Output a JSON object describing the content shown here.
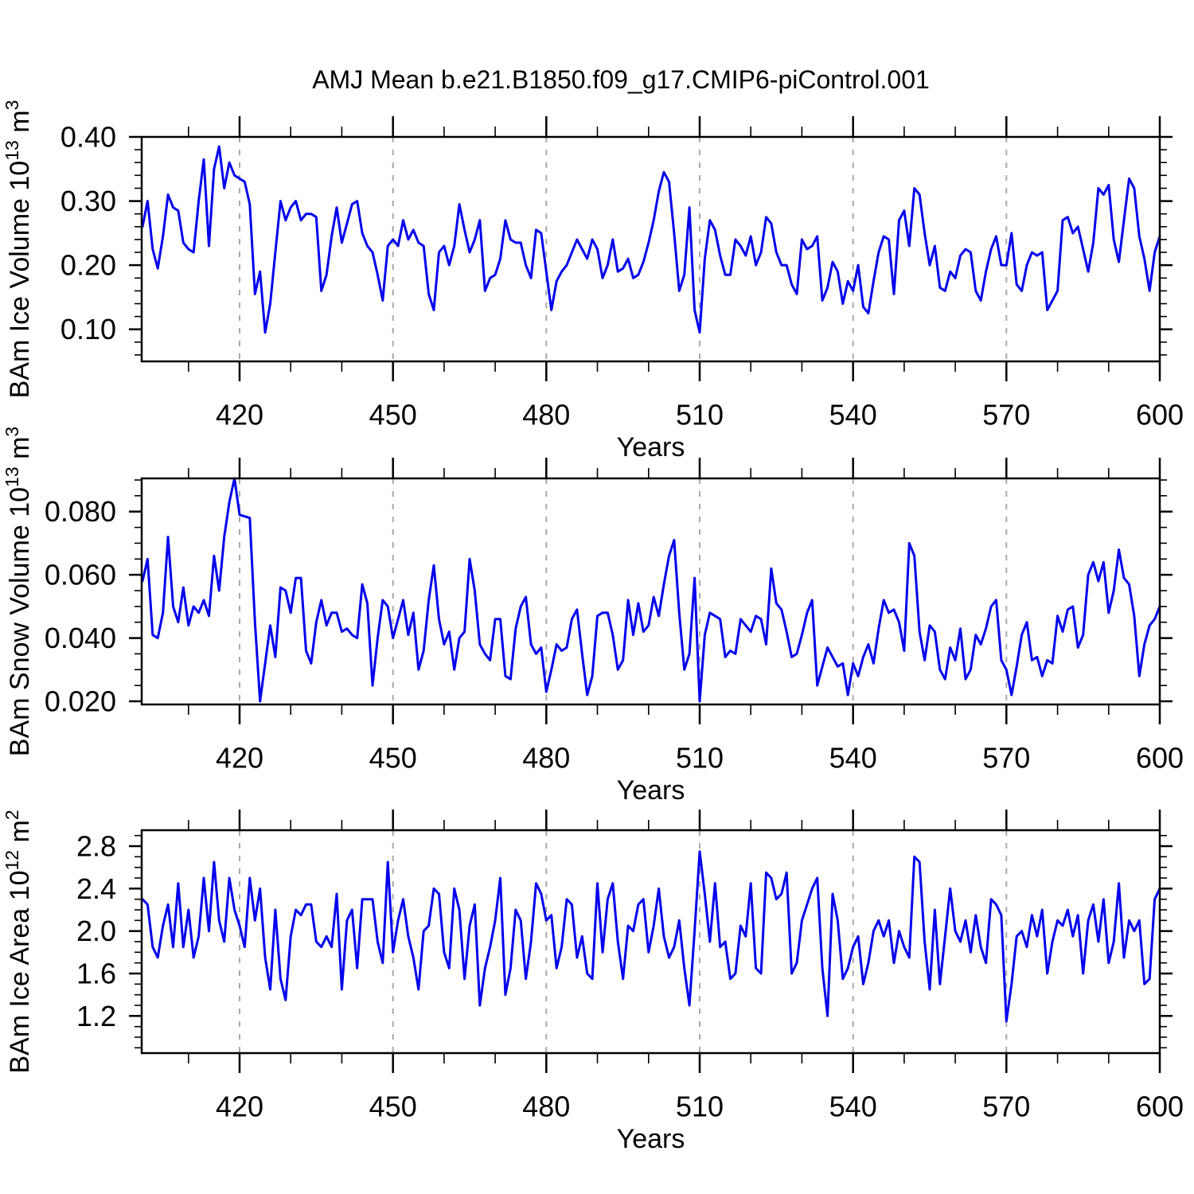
{
  "title": "AMJ Mean b.e21.B1850.f09_g17.CMIP6-piControl.001",
  "colors": {
    "line": "#0000EE",
    "grid": "#A9A9A9",
    "frame": "#000000",
    "text": "#000000",
    "background": "#FFFFFF"
  },
  "chart_data": [
    {
      "type": "line",
      "name": "bam-ice-volume",
      "ylabel_parts": [
        {
          "t": "BAm Ice Volume 10"
        },
        {
          "t": "13",
          "sup": true
        },
        {
          "t": " m"
        },
        {
          "t": "3",
          "sup": true
        }
      ],
      "xlabel": "Years",
      "x_start": 401,
      "x_step": 1,
      "xlim": [
        400.85,
        600
      ],
      "ylim": [
        0.05,
        0.4
      ],
      "xticks": [
        420,
        450,
        480,
        510,
        540,
        570,
        600
      ],
      "xtick_labels": [
        "420",
        "450",
        "480",
        "510",
        "540",
        "570",
        "600"
      ],
      "xminor_step": 10,
      "yticks": [
        0.1,
        0.2,
        0.3,
        0.4
      ],
      "ytick_labels": [
        "0.10",
        "0.20",
        "0.30",
        "0.40"
      ],
      "yminor_step": 0.02,
      "grid": "vertical-dashed",
      "legend": "none",
      "values": [
        0.26,
        0.3,
        0.225,
        0.195,
        0.245,
        0.31,
        0.29,
        0.285,
        0.235,
        0.225,
        0.22,
        0.3,
        0.365,
        0.23,
        0.35,
        0.385,
        0.32,
        0.36,
        0.34,
        0.335,
        0.33,
        0.295,
        0.155,
        0.19,
        0.095,
        0.14,
        0.22,
        0.3,
        0.27,
        0.29,
        0.3,
        0.27,
        0.28,
        0.28,
        0.275,
        0.16,
        0.185,
        0.245,
        0.29,
        0.235,
        0.265,
        0.295,
        0.3,
        0.25,
        0.23,
        0.22,
        0.185,
        0.145,
        0.23,
        0.24,
        0.23,
        0.27,
        0.24,
        0.255,
        0.235,
        0.23,
        0.155,
        0.13,
        0.22,
        0.23,
        0.2,
        0.23,
        0.295,
        0.255,
        0.22,
        0.24,
        0.27,
        0.16,
        0.18,
        0.185,
        0.21,
        0.27,
        0.24,
        0.235,
        0.235,
        0.2,
        0.18,
        0.255,
        0.25,
        0.19,
        0.13,
        0.175,
        0.19,
        0.2,
        0.22,
        0.24,
        0.225,
        0.21,
        0.24,
        0.225,
        0.18,
        0.2,
        0.24,
        0.19,
        0.195,
        0.21,
        0.18,
        0.185,
        0.205,
        0.235,
        0.27,
        0.315,
        0.345,
        0.33,
        0.25,
        0.16,
        0.185,
        0.29,
        0.13,
        0.095,
        0.21,
        0.27,
        0.255,
        0.215,
        0.185,
        0.185,
        0.24,
        0.23,
        0.215,
        0.245,
        0.2,
        0.22,
        0.275,
        0.265,
        0.22,
        0.2,
        0.2,
        0.17,
        0.155,
        0.24,
        0.225,
        0.23,
        0.245,
        0.145,
        0.165,
        0.205,
        0.19,
        0.14,
        0.175,
        0.16,
        0.2,
        0.135,
        0.125,
        0.175,
        0.22,
        0.245,
        0.24,
        0.155,
        0.27,
        0.285,
        0.23,
        0.32,
        0.31,
        0.25,
        0.2,
        0.23,
        0.165,
        0.16,
        0.19,
        0.18,
        0.215,
        0.225,
        0.22,
        0.16,
        0.145,
        0.19,
        0.225,
        0.245,
        0.2,
        0.2,
        0.25,
        0.17,
        0.16,
        0.2,
        0.22,
        0.215,
        0.22,
        0.13,
        0.145,
        0.16,
        0.27,
        0.275,
        0.25,
        0.26,
        0.225,
        0.19,
        0.235,
        0.32,
        0.31,
        0.325,
        0.24,
        0.205,
        0.27,
        0.335,
        0.32,
        0.245,
        0.21,
        0.16,
        0.22,
        0.245
      ]
    },
    {
      "type": "line",
      "name": "bam-snow-volume",
      "ylabel_parts": [
        {
          "t": "BAm Snow Volume 10"
        },
        {
          "t": "13",
          "sup": true
        },
        {
          "t": " m"
        },
        {
          "t": "3",
          "sup": true
        }
      ],
      "xlabel": "Years",
      "x_start": 401,
      "x_step": 1,
      "xlim": [
        400.85,
        600
      ],
      "ylim": [
        0.019,
        0.0905
      ],
      "xticks": [
        420,
        450,
        480,
        510,
        540,
        570,
        600
      ],
      "xtick_labels": [
        "420",
        "450",
        "480",
        "510",
        "540",
        "570",
        "600"
      ],
      "xminor_step": 10,
      "yticks": [
        0.02,
        0.04,
        0.06,
        0.08
      ],
      "ytick_labels": [
        "0.020",
        "0.040",
        "0.060",
        "0.080"
      ],
      "yminor_step": 0.005,
      "grid": "vertical-dashed",
      "legend": "none",
      "values": [
        0.058,
        0.065,
        0.041,
        0.04,
        0.048,
        0.072,
        0.05,
        0.045,
        0.056,
        0.044,
        0.05,
        0.048,
        0.052,
        0.047,
        0.066,
        0.055,
        0.072,
        0.083,
        0.0905,
        0.079,
        0.0785,
        0.078,
        0.045,
        0.02,
        0.032,
        0.044,
        0.034,
        0.056,
        0.055,
        0.048,
        0.059,
        0.059,
        0.036,
        0.032,
        0.045,
        0.052,
        0.044,
        0.048,
        0.048,
        0.042,
        0.043,
        0.041,
        0.04,
        0.057,
        0.051,
        0.025,
        0.04,
        0.052,
        0.05,
        0.04,
        0.046,
        0.052,
        0.041,
        0.048,
        0.03,
        0.036,
        0.052,
        0.063,
        0.046,
        0.038,
        0.042,
        0.03,
        0.04,
        0.042,
        0.065,
        0.055,
        0.038,
        0.035,
        0.033,
        0.046,
        0.046,
        0.028,
        0.027,
        0.043,
        0.05,
        0.053,
        0.038,
        0.035,
        0.037,
        0.023,
        0.03,
        0.038,
        0.036,
        0.037,
        0.046,
        0.049,
        0.035,
        0.022,
        0.028,
        0.047,
        0.048,
        0.048,
        0.041,
        0.03,
        0.033,
        0.052,
        0.041,
        0.051,
        0.042,
        0.044,
        0.053,
        0.047,
        0.057,
        0.066,
        0.071,
        0.048,
        0.03,
        0.035,
        0.059,
        0.02,
        0.041,
        0.048,
        0.047,
        0.046,
        0.034,
        0.036,
        0.035,
        0.046,
        0.044,
        0.042,
        0.047,
        0.046,
        0.038,
        0.062,
        0.051,
        0.049,
        0.042,
        0.034,
        0.035,
        0.041,
        0.048,
        0.052,
        0.025,
        0.031,
        0.037,
        0.034,
        0.031,
        0.032,
        0.022,
        0.032,
        0.028,
        0.034,
        0.038,
        0.032,
        0.043,
        0.052,
        0.048,
        0.049,
        0.045,
        0.036,
        0.07,
        0.066,
        0.042,
        0.033,
        0.044,
        0.042,
        0.03,
        0.027,
        0.037,
        0.033,
        0.043,
        0.027,
        0.03,
        0.041,
        0.038,
        0.043,
        0.05,
        0.052,
        0.033,
        0.03,
        0.022,
        0.031,
        0.041,
        0.045,
        0.033,
        0.034,
        0.028,
        0.033,
        0.032,
        0.047,
        0.042,
        0.049,
        0.05,
        0.037,
        0.041,
        0.06,
        0.064,
        0.058,
        0.064,
        0.048,
        0.055,
        0.068,
        0.059,
        0.057,
        0.047,
        0.028,
        0.038,
        0.044,
        0.046,
        0.05
      ]
    },
    {
      "type": "line",
      "name": "bam-ice-area",
      "ylabel_parts": [
        {
          "t": "BAm Ice Area 10"
        },
        {
          "t": "12",
          "sup": true
        },
        {
          "t": " m"
        },
        {
          "t": "2",
          "sup": true
        }
      ],
      "xlabel": "Years",
      "x_start": 401,
      "x_step": 1,
      "xlim": [
        400.85,
        600
      ],
      "ylim": [
        0.85,
        2.95
      ],
      "xticks": [
        420,
        450,
        480,
        510,
        540,
        570,
        600
      ],
      "xtick_labels": [
        "420",
        "450",
        "480",
        "510",
        "540",
        "570",
        "600"
      ],
      "xminor_step": 10,
      "yticks": [
        1.2,
        1.6,
        2.0,
        2.4,
        2.8
      ],
      "ytick_labels": [
        "1.2",
        "1.6",
        "2.0",
        "2.4",
        "2.8"
      ],
      "yminor_step": 0.1,
      "grid": "vertical-dashed",
      "legend": "none",
      "values": [
        2.3,
        2.25,
        1.85,
        1.75,
        2.05,
        2.25,
        1.85,
        2.45,
        1.85,
        2.2,
        1.75,
        1.95,
        2.5,
        2.0,
        2.65,
        2.1,
        1.9,
        2.5,
        2.2,
        2.05,
        1.85,
        2.5,
        2.1,
        2.4,
        1.75,
        1.45,
        2.2,
        1.55,
        1.35,
        1.95,
        2.2,
        2.15,
        2.25,
        2.25,
        1.9,
        1.85,
        1.95,
        1.85,
        2.35,
        1.45,
        2.1,
        2.2,
        1.65,
        2.3,
        2.3,
        2.3,
        1.9,
        1.7,
        2.65,
        1.8,
        2.1,
        2.3,
        1.95,
        1.75,
        1.45,
        2.0,
        2.05,
        2.4,
        2.35,
        1.8,
        1.65,
        2.4,
        2.2,
        1.55,
        2.05,
        2.25,
        1.3,
        1.65,
        1.85,
        2.1,
        2.5,
        1.4,
        1.65,
        2.2,
        2.1,
        1.55,
        1.9,
        2.45,
        2.35,
        2.1,
        2.15,
        1.65,
        1.85,
        2.3,
        2.25,
        1.75,
        1.95,
        1.6,
        1.55,
        2.45,
        1.8,
        2.3,
        2.45,
        1.9,
        1.55,
        2.05,
        2.0,
        2.25,
        2.3,
        1.8,
        2.05,
        2.4,
        1.95,
        1.75,
        1.85,
        2.1,
        1.65,
        1.3,
        2.0,
        2.75,
        2.35,
        1.9,
        2.45,
        1.85,
        1.9,
        1.55,
        1.6,
        2.05,
        1.95,
        2.45,
        1.65,
        1.6,
        2.55,
        2.5,
        2.3,
        2.35,
        2.55,
        1.6,
        1.7,
        2.1,
        2.25,
        2.4,
        2.5,
        1.65,
        1.2,
        2.35,
        2.1,
        1.55,
        1.65,
        1.85,
        1.95,
        1.5,
        1.7,
        2.0,
        2.1,
        1.95,
        2.1,
        1.7,
        2.0,
        1.85,
        1.75,
        2.7,
        2.65,
        1.9,
        1.45,
        2.2,
        1.5,
        1.95,
        2.4,
        2.0,
        1.9,
        2.1,
        1.8,
        2.15,
        1.85,
        1.7,
        2.3,
        2.25,
        2.15,
        1.15,
        1.5,
        1.95,
        2.0,
        1.85,
        2.15,
        1.95,
        2.2,
        1.6,
        1.9,
        2.1,
        2.05,
        2.2,
        1.95,
        2.15,
        1.6,
        2.1,
        2.25,
        1.9,
        2.3,
        1.7,
        1.9,
        2.45,
        1.75,
        2.1,
        2.0,
        2.1,
        1.5,
        1.55,
        2.3,
        2.4
      ]
    }
  ]
}
